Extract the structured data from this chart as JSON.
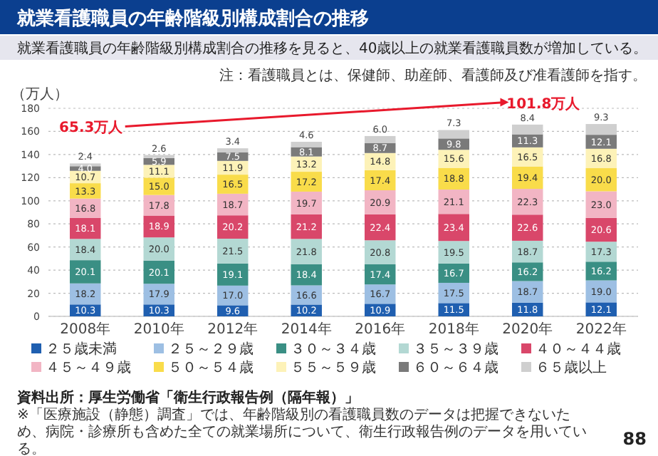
{
  "chart_data": {
    "type": "bar",
    "stacked": true,
    "title": "就業看護職員の年齢階級別構成割合の推移",
    "subtitle": "就業看護職員の年齢階級別構成割合の推移を見ると、40歳以上の就業看護職員数が増加している。",
    "ylabel": "（万人）",
    "categories": [
      "2008年",
      "2010年",
      "2012年",
      "2014年",
      "2016年",
      "2018年",
      "2020年",
      "2022年"
    ],
    "series": [
      {
        "name": "２５歳未満",
        "color": "#1f5fb0",
        "values": [
          10.3,
          10.3,
          9.6,
          10.2,
          10.9,
          11.5,
          11.8,
          12.1
        ],
        "value_labels": [
          "10.3",
          "10.3",
          "9.6",
          "10.2",
          "10.9",
          "11.5",
          "11.8",
          "12.1"
        ]
      },
      {
        "name": "２５～２９歳",
        "color": "#9dbfe3",
        "values": [
          18.2,
          17.9,
          17.0,
          16.6,
          16.7,
          17.5,
          18.7,
          19.0
        ],
        "value_labels": [
          "18.2",
          "17.9",
          "17.0",
          "16.6",
          "16.7",
          "17.5",
          "18.7",
          "19.0"
        ]
      },
      {
        "name": "３０～３４歳",
        "color": "#3a8f84",
        "values": [
          20.1,
          20.1,
          19.1,
          18.4,
          17.4,
          16.7,
          16.2,
          16.2
        ],
        "value_labels": [
          "20.1",
          "20.1",
          "19.1",
          "18.4",
          "17.4",
          "16.7",
          "16.2",
          "16.2"
        ]
      },
      {
        "name": "３５～３９歳",
        "color": "#b3d8d3",
        "values": [
          18.4,
          20.0,
          21.5,
          21.8,
          20.8,
          19.5,
          18.7,
          17.3
        ],
        "value_labels": [
          "18.4",
          "20.0",
          "21.5",
          "21.8",
          "20.8",
          "19.5",
          "18.7",
          "17.3"
        ]
      },
      {
        "name": "４０～４４歳",
        "color": "#d9476a",
        "values": [
          18.1,
          18.9,
          20.2,
          21.2,
          22.4,
          23.4,
          22.6,
          20.6
        ],
        "value_labels": [
          "18.1",
          "18.9",
          "20.2",
          "21.2",
          "22.4",
          "23.4",
          "22.6",
          "20.6"
        ]
      },
      {
        "name": "４５～４９歳",
        "color": "#f2b5c4",
        "values": [
          16.8,
          17.8,
          18.7,
          19.7,
          20.9,
          21.1,
          22.3,
          23.0
        ],
        "value_labels": [
          "16.8",
          "17.8",
          "18.7",
          "19.7",
          "20.9",
          "21.1",
          "22.3",
          "23.0"
        ]
      },
      {
        "name": "５０～５４歳",
        "color": "#f9dc4a",
        "values": [
          13.3,
          15.0,
          16.5,
          17.2,
          17.4,
          18.8,
          19.4,
          20.0
        ],
        "value_labels": [
          "13.3",
          "15.0",
          "16.5",
          "17.2",
          "17.4",
          "18.8",
          "19.4",
          "20.0"
        ]
      },
      {
        "name": "５５～５９歳",
        "color": "#fdf2b8",
        "values": [
          10.7,
          11.1,
          11.9,
          13.2,
          14.8,
          15.6,
          16.5,
          16.8
        ],
        "value_labels": [
          "10.7",
          "11.1",
          "11.9",
          "13.2",
          "14.8",
          "15.6",
          "16.5",
          "16.8"
        ]
      },
      {
        "name": "６０～６４歳",
        "color": "#7a7a7a",
        "values": [
          4.0,
          5.9,
          7.5,
          8.1,
          8.7,
          9.8,
          11.3,
          12.1
        ],
        "value_labels": [
          "4.0",
          "5.9",
          "7.5",
          "8.1",
          "8.7",
          "9.8",
          "11.3",
          "12.1"
        ]
      },
      {
        "name": "６５歳以上",
        "color": "#cfcfcf",
        "values": [
          2.4,
          2.6,
          3.4,
          4.6,
          6.0,
          7.3,
          8.4,
          9.3
        ],
        "value_labels": [
          "2.4",
          "2.6",
          "3.4",
          "4.6",
          "6.0",
          "7.3",
          "8.4",
          "9.3"
        ]
      }
    ],
    "ylim": [
      0,
      180
    ],
    "yticks": [
      0,
      20,
      40,
      60,
      80,
      100,
      120,
      140,
      160,
      180
    ],
    "grid": "y",
    "legend": "bottom",
    "annotations": [
      {
        "text": "65.3万人",
        "x": "2008年",
        "y": 132.3
      },
      {
        "text": "101.8万人",
        "x": "2022年",
        "y": 163.0
      },
      "注：看護職員とは、保健師、助産師、看護師及び准看護師を指す。",
      "資料出所：厚生労働省「衛生行政報告例（隔年報）」",
      "※「医療施設（静態）調査」では、年齢階級別の看護職員数のデータは把握できないため、病院・診療所も含めた全ての就業場所について、衛生行政報告例のデータを用いている。",
      "88"
    ]
  }
}
